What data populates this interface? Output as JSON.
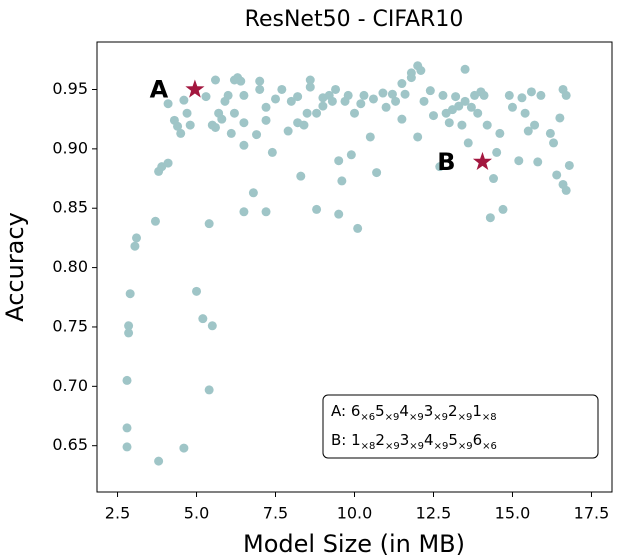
{
  "chart_data": {
    "type": "scatter",
    "title": "ResNet50 - CIFAR10",
    "xlabel": "Model Size (in MB)",
    "ylabel": "Accuracy",
    "xlim": [
      1.85,
      18.15
    ],
    "ylim": [
      0.611,
      0.99
    ],
    "xticks": [
      2.5,
      {
        "value": 5,
        "label": "5.0"
      },
      7.5,
      {
        "value": 10,
        "label": "10.0"
      },
      12.5,
      {
        "value": 15,
        "label": "15.0"
      },
      17.5
    ],
    "yticks": [
      0.65,
      {
        "value": 0.7,
        "label": "0.70"
      },
      0.75,
      {
        "value": 0.8,
        "label": "0.80"
      },
      0.85,
      {
        "value": 0.9,
        "label": "0.90"
      },
      0.95
    ],
    "points": {
      "color": "#9fc5c7",
      "x": [
        2.8,
        2.8,
        2.8,
        2.85,
        2.85,
        2.9,
        3.05,
        3.1,
        3.7,
        3.8,
        3.8,
        3.9,
        4.1,
        4.1,
        4.3,
        4.4,
        4.5,
        4.6,
        4.6,
        4.7,
        4.8,
        5.0,
        5.2,
        5.4,
        5.4,
        5.5,
        5.3,
        5.6,
        5.5,
        5.6,
        5.7,
        5.8,
        5.9,
        6.0,
        6.2,
        6.3,
        6.2,
        6.1,
        6.4,
        6.5,
        6.5,
        6.5,
        6.5,
        6.8,
        6.9,
        7.0,
        7.0,
        7.2,
        7.2,
        7.2,
        7.4,
        7.5,
        7.7,
        7.9,
        8.0,
        8.2,
        8.2,
        8.4,
        8.3,
        8.5,
        8.6,
        8.6,
        8.8,
        8.8,
        9.0,
        9.0,
        9.2,
        9.3,
        9.4,
        9.5,
        9.5,
        9.6,
        9.7,
        9.8,
        9.9,
        10.0,
        10.1,
        10.2,
        10.3,
        10.5,
        10.6,
        10.7,
        10.9,
        11.0,
        11.2,
        11.3,
        11.5,
        11.5,
        11.6,
        11.8,
        11.8,
        12.0,
        12.0,
        12.1,
        12.2,
        12.4,
        12.5,
        12.7,
        12.8,
        12.9,
        13.0,
        13.1,
        13.2,
        13.3,
        13.4,
        13.5,
        13.5,
        13.6,
        13.7,
        13.8,
        13.9,
        14.0,
        14.1,
        14.2,
        14.3,
        14.4,
        14.5,
        14.6,
        14.7,
        14.9,
        15.0,
        15.2,
        15.3,
        15.4,
        15.5,
        15.6,
        15.7,
        15.8,
        15.9,
        16.2,
        16.3,
        16.4,
        16.5,
        16.6,
        16.6,
        16.7,
        16.8,
        16.7
      ],
      "y": [
        0.649,
        0.665,
        0.705,
        0.745,
        0.751,
        0.778,
        0.818,
        0.825,
        0.839,
        0.637,
        0.881,
        0.885,
        0.888,
        0.938,
        0.924,
        0.919,
        0.913,
        0.648,
        0.941,
        0.93,
        0.92,
        0.78,
        0.757,
        0.697,
        0.837,
        0.751,
        0.944,
        0.958,
        0.92,
        0.918,
        0.93,
        0.925,
        0.94,
        0.945,
        0.958,
        0.96,
        0.93,
        0.913,
        0.957,
        0.945,
        0.922,
        0.903,
        0.847,
        0.863,
        0.912,
        0.957,
        0.95,
        0.847,
        0.935,
        0.924,
        0.897,
        0.942,
        0.95,
        0.915,
        0.94,
        0.944,
        0.922,
        0.92,
        0.877,
        0.93,
        0.952,
        0.958,
        0.849,
        0.93,
        0.943,
        0.936,
        0.945,
        0.94,
        0.95,
        0.89,
        0.845,
        0.873,
        0.94,
        0.945,
        0.895,
        0.93,
        0.833,
        0.938,
        0.945,
        0.91,
        0.942,
        0.88,
        0.947,
        0.935,
        0.946,
        0.94,
        0.955,
        0.925,
        0.946,
        0.96,
        0.964,
        0.97,
        0.91,
        0.966,
        0.94,
        0.949,
        0.928,
        0.885,
        0.945,
        0.93,
        0.922,
        0.933,
        0.944,
        0.936,
        0.92,
        0.94,
        0.967,
        0.905,
        0.935,
        0.945,
        0.93,
        0.948,
        0.945,
        0.92,
        0.842,
        0.875,
        0.897,
        0.913,
        0.849,
        0.945,
        0.935,
        0.89,
        0.943,
        0.93,
        0.915,
        0.948,
        0.92,
        0.889,
        0.945,
        0.913,
        0.905,
        0.878,
        0.926,
        0.95,
        0.87,
        0.865,
        0.886,
        0.945
      ]
    },
    "annotations": [
      {
        "label": "A",
        "x": 4.95,
        "y": 0.95,
        "color": "#a3173f"
      },
      {
        "label": "B",
        "x": 14.05,
        "y": 0.889,
        "color": "#a3173f"
      }
    ],
    "legend_box": [
      {
        "prefix": "A: ",
        "terms": [
          [
            "6",
            "×6"
          ],
          [
            "5",
            "×9"
          ],
          [
            "4",
            "×9"
          ],
          [
            "3",
            "×9"
          ],
          [
            "2",
            "×9"
          ],
          [
            "1",
            "×8"
          ]
        ]
      },
      {
        "prefix": "B: ",
        "terms": [
          [
            "1",
            "×8"
          ],
          [
            "2",
            "×9"
          ],
          [
            "3",
            "×9"
          ],
          [
            "4",
            "×9"
          ],
          [
            "5",
            "×9"
          ],
          [
            "6",
            "×6"
          ]
        ]
      }
    ]
  }
}
